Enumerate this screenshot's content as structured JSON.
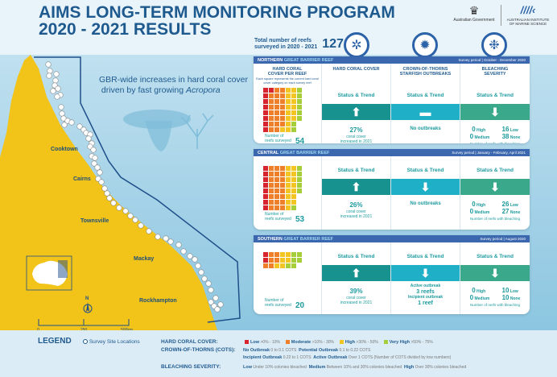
{
  "header": {
    "title_line1": "AIMS LONG-TERM MONITORING PROGRAM",
    "title_line2": "2020 - 2021 RESULTS",
    "logo_gov": "Australian Government",
    "logo_aims": "AUSTRALIAN INSTITUTE OF MARINE SCIENCE"
  },
  "tagline": {
    "line1": "GBR-wide increases in hard coral cover",
    "line2": "driven by fast growing ",
    "italic": "Acropora"
  },
  "total": {
    "label_line1": "Total number of reefs",
    "label_line2": "surveyed in 2020 - 2021",
    "value": "127"
  },
  "icons": [
    "hard-coral-icon",
    "crown-of-thorns-icon",
    "bleaching-coral-icon"
  ],
  "columns": {
    "c1": "HARD CORAL COVER PER REEF",
    "c1_note": "Each square represents the current hard coral cover category on each survey reef",
    "c2": "HARD CORAL COVER",
    "c3": "CROWN-OF-THORNS STARFISH OUTBREAKS",
    "c4": "BLEACHING SEVERITY",
    "status": "Status & Trend",
    "reefs_label": "Number of reefs surveyed",
    "bleach_label": "Number of reefs with bleaching",
    "high": "High",
    "medium": "Medium",
    "low": "Low",
    "none": "None"
  },
  "regions": [
    {
      "name_a": "NORTHERN",
      "name_b": "GREAT BARRIER REEF",
      "period": "Survey period | October - December 2020",
      "reefs": "54",
      "grid": {
        "low": 9,
        "moderate": 22,
        "high": 15,
        "very_high": 8
      },
      "coral_trend": "up",
      "coral_value": "27%",
      "coral_text": "coral cover increased in 2021",
      "cots_trend": "steady",
      "cots_text": "No outbreaks",
      "bleach_trend": "down",
      "bleach": {
        "high": "0",
        "medium": "0",
        "low": "16",
        "none": "38"
      }
    },
    {
      "name_a": "CENTRAL",
      "name_b": "GREAT BARRIER REEF",
      "period": "Survey period | January - February, April 2021",
      "reefs": "53",
      "grid": {
        "low": 8,
        "moderate": 24,
        "high": 15,
        "very_high": 6
      },
      "coral_trend": "up",
      "coral_value": "26%",
      "coral_text": "coral cover increased in 2021",
      "cots_trend": "down",
      "cots_text": "No outbreaks",
      "bleach_trend": "down",
      "bleach": {
        "high": "0",
        "medium": "0",
        "low": "26",
        "none": "27"
      }
    },
    {
      "name_a": "SOUTHERN",
      "name_b": "GREAT BARRIER REEF",
      "period": "Survey period | August 2020",
      "reefs": "20",
      "grid": {
        "low": 2,
        "moderate": 6,
        "high": 6,
        "very_high": 6
      },
      "coral_trend": "up",
      "coral_value": "39%",
      "coral_text": "coral cover increased in 2021",
      "cots_trend": "down",
      "cots_active_label": "Active outbreak",
      "cots_active": "3 reefs",
      "cots_incipient_label": "Incipient outbreak",
      "cots_incipient": "1 reef",
      "bleach_trend": "down",
      "bleach": {
        "high": "0",
        "medium": "0",
        "low": "10",
        "none": "10"
      }
    }
  ],
  "map": {
    "towns": [
      "Cooktown",
      "Cairns",
      "Townsville",
      "Mackay",
      "Rockhampton"
    ],
    "north": "N",
    "scale": [
      "0",
      "250",
      "500km"
    ]
  },
  "legend": {
    "title": "LEGEND",
    "sites": "Survey Site Locations",
    "hcc_label": "HARD CORAL COVER:",
    "hcc": [
      {
        "name": "Low",
        "range": ">0% - 10%",
        "color": "#d7242e"
      },
      {
        "name": "Moderate",
        "range": ">10% - 30%",
        "color": "#f07f2a"
      },
      {
        "name": "High",
        "range": ">30% - 50%",
        "color": "#f3c523"
      },
      {
        "name": "Very High",
        "range": ">50% - 75%",
        "color": "#a6cd3a"
      }
    ],
    "cots_label": "CROWN-OF-THORNS (COTS):",
    "cots": [
      {
        "name": "No Outbreak",
        "range": "0 to 0.1 COTS"
      },
      {
        "name": "Potential Outbreak",
        "range": "0.1 to 0.22 COTS"
      },
      {
        "name": "Incipient Outbreak",
        "range": "0.22 to 1 COTS"
      },
      {
        "name": "Active Outbreak",
        "range": "Over 1 COTS (Number of COTS divided by tow numbers)"
      }
    ],
    "bleach_label": "BLEACHING SEVERITY:",
    "bleach": [
      {
        "name": "Low",
        "range": "Under 10% colonies bleached"
      },
      {
        "name": "Medium",
        "range": "Between 10% and 30% colonies bleached"
      },
      {
        "name": "High",
        "range": "Over 30% colonies bleached"
      }
    ]
  },
  "colors": {
    "bar_coral": "#17928f",
    "bar_cots": "#1fb0c8",
    "bar_bleach": "#3aa88a",
    "header": "#3b67ae",
    "land": "#f2c318"
  }
}
